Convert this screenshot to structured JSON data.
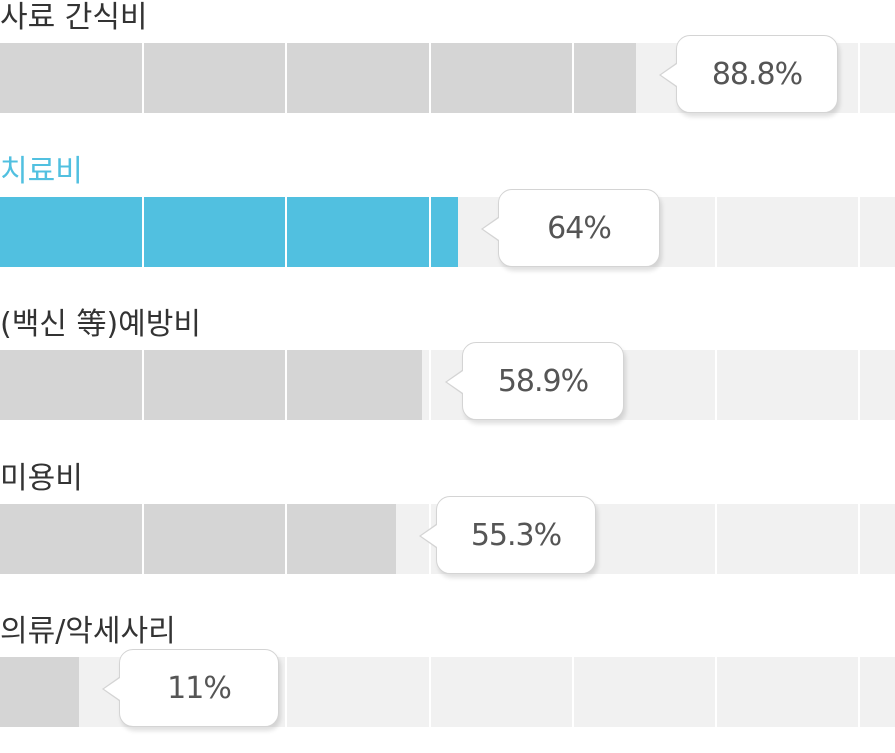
{
  "chart_data": {
    "type": "bar",
    "orientation": "horizontal",
    "categories": [
      "사료 간식비",
      "치료비",
      "(백신 等)예방비",
      "미용비",
      "의류/악세사리"
    ],
    "values": [
      88.8,
      64,
      58.9,
      55.3,
      11
    ],
    "value_labels": [
      "88.8%",
      "64%",
      "58.9%",
      "55.3%",
      "11%"
    ],
    "xlim": [
      0,
      100
    ],
    "unit": "%",
    "highlight_index": 1,
    "grid": true,
    "legend": "none"
  },
  "colors": {
    "track": "#f1f1f1",
    "bar": "#d5d5d5",
    "highlight": "#51c0e0",
    "label": "#333333",
    "highlight_label": "#51c0e0",
    "value_text": "#555555"
  }
}
